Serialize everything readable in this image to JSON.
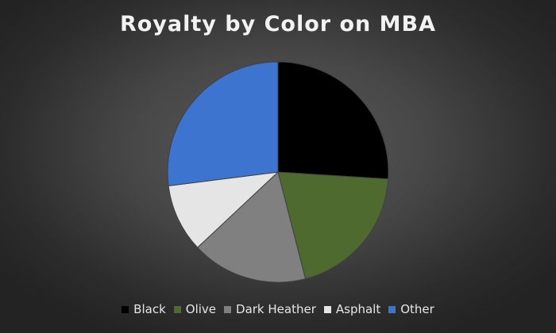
{
  "chart_data": {
    "type": "pie",
    "title": "Royalty by Color on MBA",
    "categories": [
      "Black",
      "Olive",
      "Dark Heather",
      "Asphalt",
      "Other"
    ],
    "values": [
      26,
      20,
      17,
      10,
      27
    ],
    "colors": [
      "#000000",
      "#4f6a2e",
      "#808080",
      "#e5e5e5",
      "#3d74d0"
    ],
    "legend_position": "bottom"
  }
}
